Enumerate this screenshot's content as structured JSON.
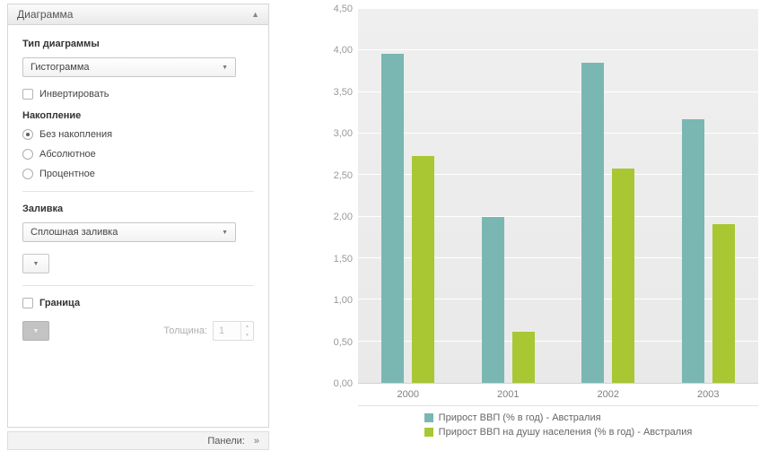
{
  "panel": {
    "title": "Диаграмма",
    "chart_type_label": "Тип диаграммы",
    "chart_type_value": "Гистограмма",
    "invert_label": "Инвертировать",
    "stacking_label": "Накопление",
    "stacking_options": [
      "Без накопления",
      "Абсолютное",
      "Процентное"
    ],
    "stacking_selected": "Без накопления",
    "fill_label": "Заливка",
    "fill_value": "Сплошная заливка",
    "border_label": "Граница",
    "thickness_label": "Толщина:",
    "thickness_value": "1",
    "panels_label": "Панели:"
  },
  "chart_data": {
    "type": "bar",
    "title": "",
    "xlabel": "",
    "ylabel": "",
    "categories": [
      "2000",
      "2001",
      "2002",
      "2003"
    ],
    "series": [
      {
        "name": "Прирост ВВП (% в год) - Австралия",
        "color": "#7ab7b2",
        "values": [
          3.96,
          2.0,
          3.85,
          3.17
        ]
      },
      {
        "name": "Прирост ВВП на душу населения (% в год) - Австралия",
        "color": "#a8c733",
        "values": [
          2.73,
          0.62,
          2.58,
          1.91
        ]
      }
    ],
    "ylim": [
      0,
      4.5
    ],
    "ytick_step": 0.5,
    "ytick_labels": [
      "0,00",
      "0,50",
      "1,00",
      "1,50",
      "2,00",
      "2,50",
      "3,00",
      "3,50",
      "4,00",
      "4,50"
    ],
    "grid": true,
    "legend_position": "bottom"
  }
}
